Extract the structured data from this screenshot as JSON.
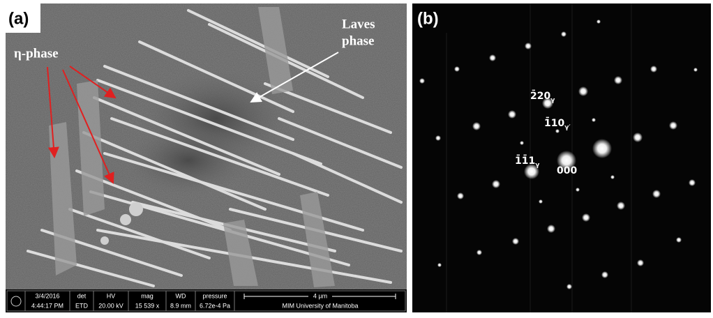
{
  "panel_a": {
    "label": "(a)",
    "eta_label": "η-phase",
    "laves_label": [
      "Laves",
      "phase"
    ],
    "info_bar": {
      "date": "3/4/2016",
      "time": "4:44:17 PM",
      "det_head": "det",
      "det": "ETD",
      "hv_head": "HV",
      "hv": "20.00 kV",
      "mag_head": "mag",
      "mag": "15 539 x",
      "wd_head": "WD",
      "wd": "8.9 mm",
      "pressure_head": "pressure",
      "pressure": "6.72e-4 Pa",
      "scale": "4 µm",
      "lab": "MIM University of Manitoba"
    }
  },
  "panel_b": {
    "label": "(b)",
    "spots": [
      {
        "index": "2̄20",
        "sub": "γ"
      },
      {
        "index": "1̄10",
        "sub": "γ′"
      },
      {
        "index": "1̄1̄1",
        "sub": "γ"
      },
      {
        "index": "000"
      }
    ]
  }
}
